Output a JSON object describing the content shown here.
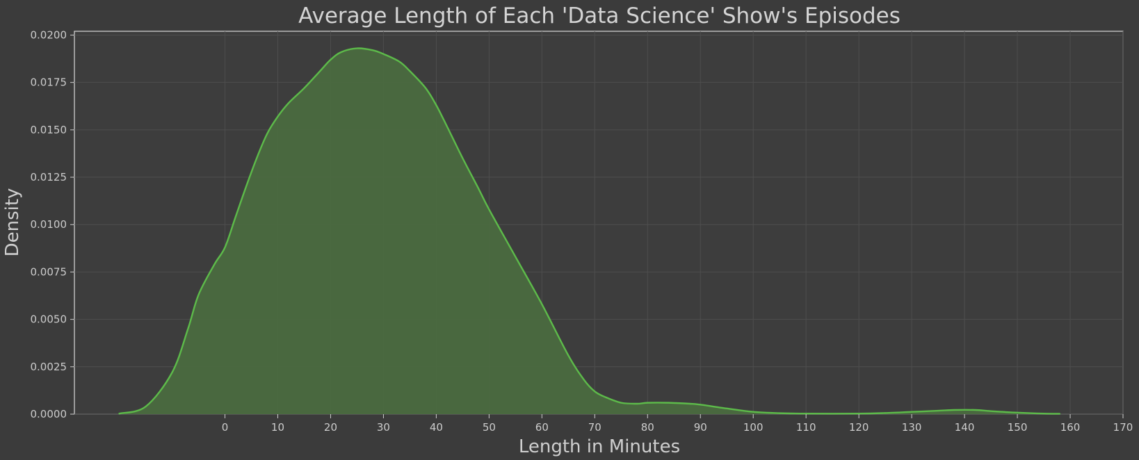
{
  "chart_data": {
    "type": "area",
    "title": "Average Length of Each 'Data Science' Show's Episodes",
    "xlabel": "Length in Minutes",
    "ylabel": "Density",
    "xlim": [
      -28.5,
      170
    ],
    "ylim": [
      0,
      0.0202
    ],
    "x_ticks": [
      0,
      10,
      20,
      30,
      40,
      50,
      60,
      70,
      80,
      90,
      100,
      110,
      120,
      130,
      140,
      150,
      160,
      170
    ],
    "x_tick_labels": [
      "0",
      "10",
      "20",
      "30",
      "40",
      "50",
      "60",
      "70",
      "80",
      "90",
      "100",
      "110",
      "120",
      "130",
      "140",
      "150",
      "160",
      "170"
    ],
    "y_ticks": [
      0,
      0.0025,
      0.005,
      0.0075,
      0.01,
      0.0125,
      0.015,
      0.0175,
      0.02
    ],
    "y_tick_labels": [
      "0.0000",
      "0.0025",
      "0.0050",
      "0.0075",
      "0.0100",
      "0.0125",
      "0.0150",
      "0.0175",
      "0.0200"
    ],
    "grid": true,
    "colors": {
      "line": "#5dbb4a",
      "fill": "#4a6b3f"
    },
    "series": [
      {
        "x": [
          -20,
          -15,
          -10,
          -7,
          -5,
          -2,
          0,
          2,
          4,
          6,
          8,
          10,
          12,
          15,
          18,
          20,
          22,
          25,
          28,
          30,
          33,
          35,
          38,
          40,
          42,
          45,
          48,
          50,
          55,
          60,
          65,
          68,
          70,
          72,
          75,
          78,
          80,
          84,
          88,
          90,
          95,
          100,
          105,
          110,
          120,
          125,
          130,
          135,
          138,
          142,
          145,
          150,
          155,
          158
        ],
        "y": [
          3e-05,
          0.0004,
          0.0022,
          0.0045,
          0.0063,
          0.0079,
          0.0088,
          0.0104,
          0.012,
          0.0135,
          0.0148,
          0.0157,
          0.0164,
          0.0172,
          0.0181,
          0.0187,
          0.0191,
          0.0193,
          0.0192,
          0.019,
          0.0186,
          0.0181,
          0.0172,
          0.0163,
          0.0152,
          0.0135,
          0.0119,
          0.0108,
          0.0083,
          0.0058,
          0.0031,
          0.0018,
          0.0012,
          0.0009,
          0.0006,
          0.00055,
          0.0006,
          0.0006,
          0.00055,
          0.0005,
          0.0003,
          0.00012,
          5e-05,
          3e-05,
          3e-05,
          6e-05,
          0.00012,
          0.00018,
          0.00022,
          0.00022,
          0.00016,
          8e-05,
          3e-05,
          2e-05
        ]
      }
    ]
  }
}
